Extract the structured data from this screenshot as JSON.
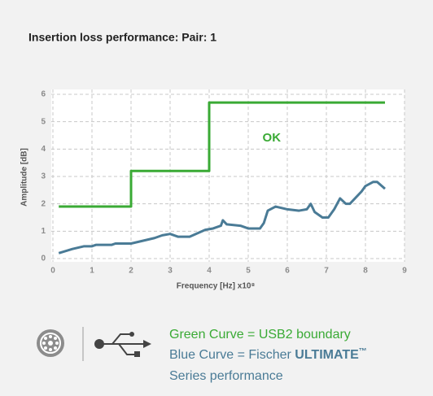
{
  "chart_data": {
    "type": "line",
    "title": "Insertion loss performance: Pair: 1",
    "x_label": "Frequency [Hz] x10⁸",
    "y_label": "Amplitude [dB]",
    "xlim": [
      0,
      9
    ],
    "xticks": [
      0,
      1,
      2,
      3,
      4,
      5,
      6,
      7,
      8,
      9
    ],
    "ylim": [
      0,
      6
    ],
    "yticks": [
      0,
      1,
      2,
      3,
      4,
      5,
      6
    ],
    "grid": true,
    "annotation": {
      "text": "OK",
      "x": 5.6,
      "y": 4.4,
      "color": "#3aaa35"
    },
    "series": [
      {
        "name": "Green Curve = USB2 boundary",
        "color": "#3aaa35",
        "x": [
          0.15,
          2,
          2,
          4,
          4,
          8.5
        ],
        "values": [
          1.9,
          1.9,
          3.2,
          3.2,
          5.7,
          5.7
        ]
      },
      {
        "name": "Blue Curve = Fischer ",
        "name_bold": "ULTIMATE",
        "name_mark": "™",
        "name_line2": "Series performance",
        "color": "#4a7b96",
        "x": [
          0.15,
          0.5,
          0.8,
          1,
          1.1,
          1.5,
          1.6,
          2,
          2.3,
          2.6,
          2.8,
          3.0,
          3.2,
          3.5,
          3.9,
          4.1,
          4.3,
          4.35,
          4.45,
          4.8,
          5.0,
          5.3,
          5.4,
          5.5,
          5.7,
          6.0,
          6.3,
          6.5,
          6.6,
          6.7,
          6.9,
          7.05,
          7.2,
          7.35,
          7.5,
          7.6,
          7.9,
          8.0,
          8.2,
          8.3,
          8.5
        ],
        "values": [
          0.2,
          0.35,
          0.45,
          0.45,
          0.5,
          0.5,
          0.55,
          0.55,
          0.65,
          0.75,
          0.85,
          0.9,
          0.8,
          0.8,
          1.05,
          1.1,
          1.2,
          1.4,
          1.25,
          1.2,
          1.1,
          1.1,
          1.3,
          1.75,
          1.9,
          1.8,
          1.75,
          1.8,
          2.0,
          1.7,
          1.5,
          1.5,
          1.8,
          2.2,
          2.0,
          2.0,
          2.45,
          2.65,
          2.8,
          2.8,
          2.55
        ]
      }
    ]
  }
}
